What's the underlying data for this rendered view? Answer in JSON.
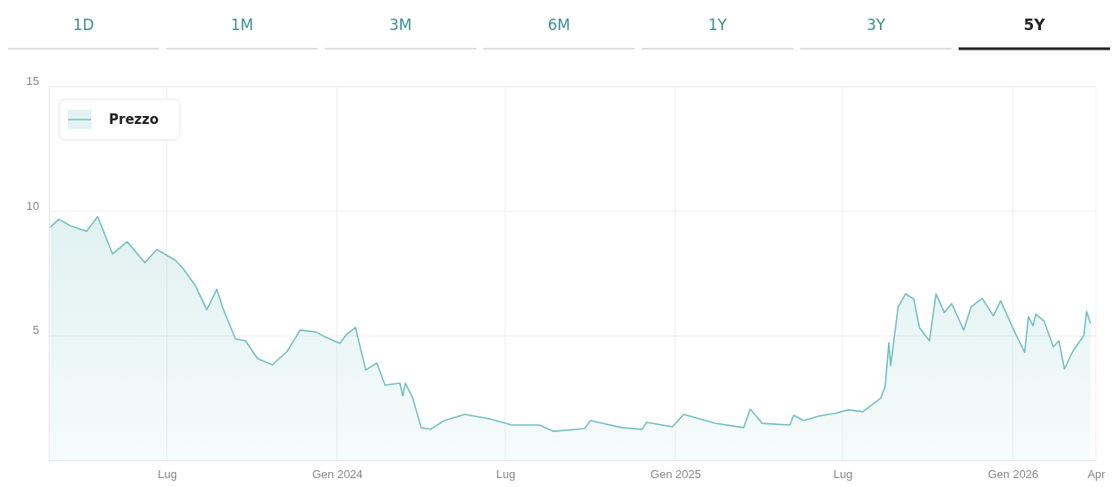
{
  "chart_data": {
    "type": "area",
    "annotations": [
      "1D",
      "1M",
      "3M",
      "6M",
      "1Y",
      "3Y",
      "5Y"
    ],
    "x": [
      "2023-02-25",
      "2023-03-06",
      "2023-03-18",
      "2023-04-05",
      "2023-04-17",
      "2023-05-03",
      "2023-05-19",
      "2023-06-07",
      "2023-06-20",
      "2023-07-10",
      "2023-07-18",
      "2023-08-01",
      "2023-08-13",
      "2023-08-24",
      "2023-08-30",
      "2023-09-13",
      "2023-09-24",
      "2023-10-07",
      "2023-10-23",
      "2023-11-08",
      "2023-11-22",
      "2023-12-09",
      "2023-12-18",
      "2024-01-04",
      "2024-01-12",
      "2024-01-21",
      "2024-02-01",
      "2024-02-13",
      "2024-02-22",
      "2024-03-09",
      "2024-03-12",
      "2024-03-15",
      "2024-03-23",
      "2024-04-01",
      "2024-04-11",
      "2024-04-26",
      "2024-05-18",
      "2024-06-14",
      "2024-07-08",
      "2024-08-07",
      "2024-08-22",
      "2024-09-25",
      "2024-10-01",
      "2024-11-04",
      "2024-11-26",
      "2024-12-01",
      "2024-12-29",
      "2025-01-10",
      "2025-02-13",
      "2025-03-16",
      "2025-03-23",
      "2025-04-05",
      "2025-05-05",
      "2025-05-09",
      "2025-05-20",
      "2025-06-05",
      "2025-06-23",
      "2025-07-07",
      "2025-07-23",
      "2025-08-11",
      "2025-08-16",
      "2025-08-20",
      "2025-08-22",
      "2025-08-30",
      "2025-09-07",
      "2025-09-16",
      "2025-09-22",
      "2025-10-03",
      "2025-10-10",
      "2025-10-19",
      "2025-10-27",
      "2025-11-09",
      "2025-11-17",
      "2025-11-29",
      "2025-12-11",
      "2025-12-19",
      "2026-01-04",
      "2026-01-14",
      "2026-01-18",
      "2026-01-23",
      "2026-01-26",
      "2026-02-04",
      "2026-02-14",
      "2026-02-20",
      "2026-02-26",
      "2026-03-07",
      "2026-03-19",
      "2026-03-22",
      "2026-03-26"
    ],
    "series": [
      {
        "name": "Prezzo",
        "color": "#74bfbf",
        "values": [
          9.37,
          9.68,
          9.43,
          9.2,
          9.79,
          8.29,
          8.78,
          7.94,
          8.47,
          8.04,
          7.72,
          7.0,
          6.05,
          6.87,
          6.16,
          4.88,
          4.8,
          4.09,
          3.84,
          4.38,
          5.23,
          5.16,
          4.98,
          4.7,
          5.09,
          5.34,
          3.63,
          3.91,
          3.02,
          3.1,
          2.6,
          3.1,
          2.49,
          1.32,
          1.25,
          1.6,
          1.85,
          1.67,
          1.42,
          1.42,
          1.17,
          1.28,
          1.6,
          1.32,
          1.25,
          1.53,
          1.35,
          1.85,
          1.49,
          1.32,
          2.06,
          1.49,
          1.42,
          1.81,
          1.6,
          1.78,
          1.89,
          2.03,
          1.96,
          2.49,
          2.95,
          4.73,
          3.81,
          6.16,
          6.69,
          6.48,
          5.34,
          4.8,
          6.69,
          5.94,
          6.3,
          5.23,
          6.16,
          6.51,
          5.8,
          6.41,
          5.09,
          4.34,
          5.77,
          5.41,
          5.87,
          5.59,
          4.56,
          4.8,
          3.67,
          4.38,
          5.02,
          5.98,
          5.52
        ]
      }
    ],
    "xlim": [
      "2023-02-23",
      "2026-04-01"
    ],
    "xticks": [
      {
        "value": "2023-07-01",
        "label": "Lug"
      },
      {
        "value": "2024-01-01",
        "label": "Gen 2024"
      },
      {
        "value": "2024-07-01",
        "label": "Lug"
      },
      {
        "value": "2025-01-01",
        "label": "Gen 2025"
      },
      {
        "value": "2025-07-01",
        "label": "Lug"
      },
      {
        "value": "2026-01-01",
        "label": "Gen 2026"
      },
      {
        "value": "2026-04-01",
        "label": "Apr"
      }
    ],
    "ylim": [
      0,
      15
    ],
    "yticks": [
      5,
      10,
      15
    ],
    "grid": true,
    "legend": "top left",
    "marker": "none",
    "line_style": "solid"
  }
}
